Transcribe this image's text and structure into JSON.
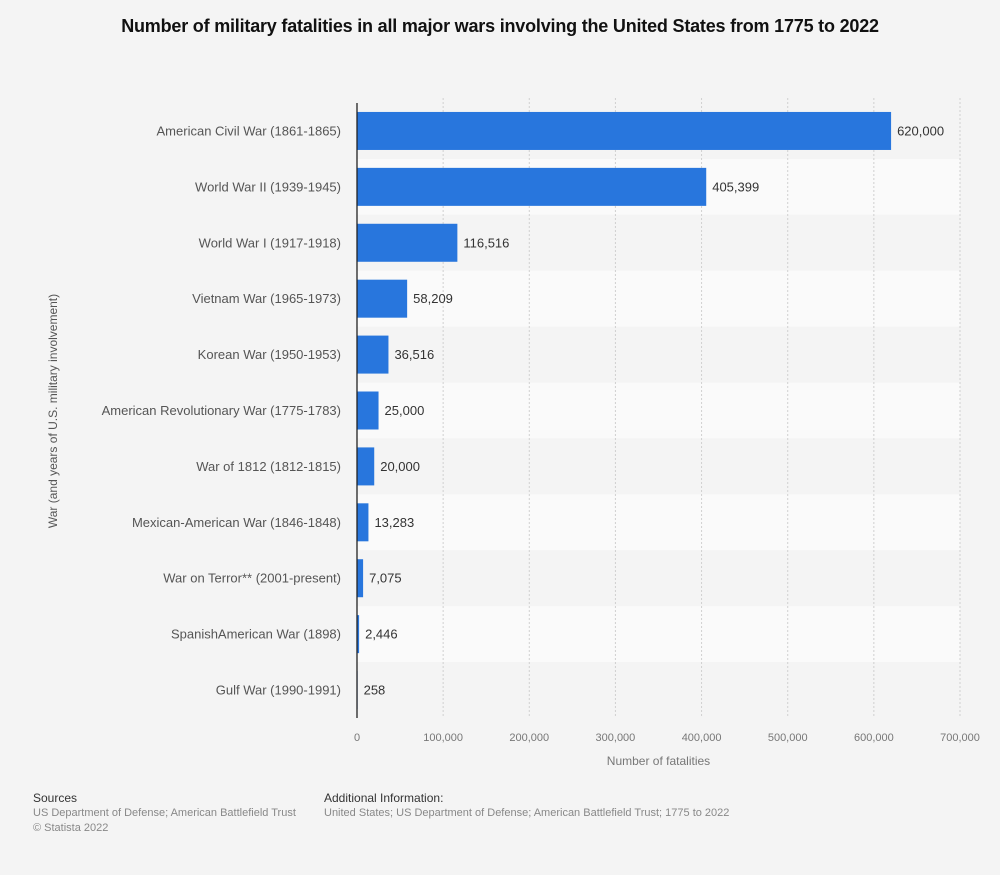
{
  "chart_data": {
    "type": "bar",
    "orientation": "horizontal",
    "title": "Number of military fatalities in all major wars involving the United States from 1775 to 2022",
    "xlabel": "Number of fatalities",
    "ylabel": "War (and years of U.S. military involvement)",
    "xlim": [
      0,
      700000
    ],
    "xticks": [
      0,
      100000,
      200000,
      300000,
      400000,
      500000,
      600000,
      700000
    ],
    "xtick_labels": [
      "0",
      "100,000",
      "200,000",
      "300,000",
      "400,000",
      "500,000",
      "600,000",
      "700,000"
    ],
    "grid": true,
    "categories": [
      "American Civil War (1861-1865)",
      "World War II (1939-1945)",
      "World War I (1917-1918)",
      "Vietnam War (1965-1973)",
      "Korean War (1950-1953)",
      "American Revolutionary War (1775-1783)",
      "War of 1812 (1812-1815)",
      "Mexican-American War (1846-1848)",
      "War on Terror** (2001-present)",
      "SpanishAmerican War (1898)",
      "Gulf War (1990-1991)"
    ],
    "values": [
      620000,
      405399,
      116516,
      58209,
      36516,
      25000,
      20000,
      13283,
      7075,
      2446,
      258
    ],
    "value_labels": [
      "620,000",
      "405,399",
      "116,516",
      "58,209",
      "36,516",
      "25,000",
      "20,000",
      "13,283",
      "7,075",
      "2,446",
      "258"
    ],
    "bar_color": "#2876dd"
  },
  "footer": {
    "sources_heading": "Sources",
    "sources_text": "US Department of Defense; American Battlefield Trust",
    "copyright": "© Statista 2022",
    "additional_heading": "Additional Information:",
    "additional_text": "United States; US Department of Defense; American Battlefield Trust; 1775 to 2022"
  }
}
